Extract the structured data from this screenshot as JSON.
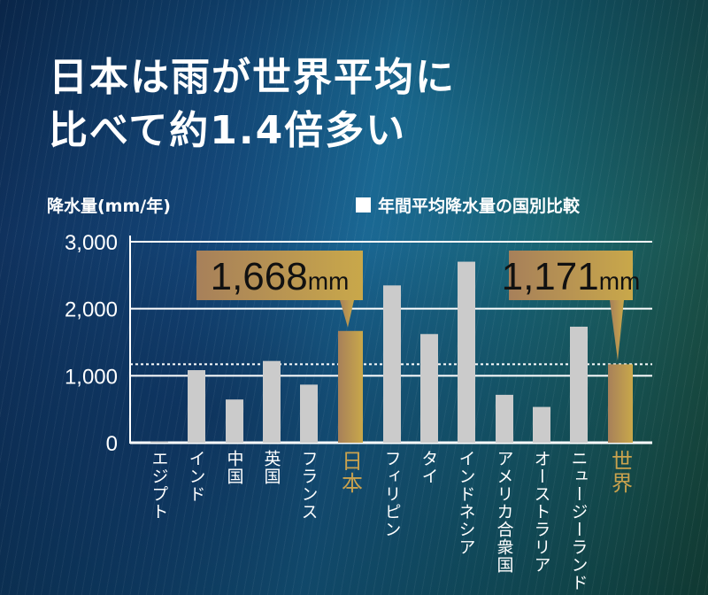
{
  "title_lines": [
    "日本は雨が世界平均に",
    "比べて約1.4倍多い"
  ],
  "colors": {
    "bar": "#cbcbcb",
    "highlight": "#b8924f",
    "callout": "#c0a050"
  },
  "chart_data": {
    "type": "bar",
    "title": "年間平均降水量の国別比較",
    "ylabel": "降水量(mm/年)",
    "xlabel": "",
    "ylim": [
      0,
      3000
    ],
    "yticks": [
      0,
      1000,
      2000,
      3000
    ],
    "ytick_labels": [
      "0",
      "1,000",
      "2,000",
      "3,000"
    ],
    "grid": true,
    "legend": "top-right",
    "categories": [
      "エジプト",
      "インド",
      "中国",
      "英国",
      "フランス",
      "日本",
      "フィリピン",
      "タイ",
      "インドネシア",
      "アメリカ合衆国",
      "オーストラリア",
      "ニュージーランド",
      "世界"
    ],
    "values": [
      18,
      1083,
      645,
      1220,
      867,
      1668,
      2348,
      1622,
      2702,
      715,
      534,
      1732,
      1171
    ],
    "highlighted": [
      "日本",
      "世界"
    ],
    "reference_line": {
      "value": 1171,
      "style": "dotted"
    },
    "annotations": [
      {
        "category": "日本",
        "text": "1,668",
        "unit": "mm"
      },
      {
        "category": "世界",
        "text": "1,171",
        "unit": "mm"
      }
    ]
  }
}
